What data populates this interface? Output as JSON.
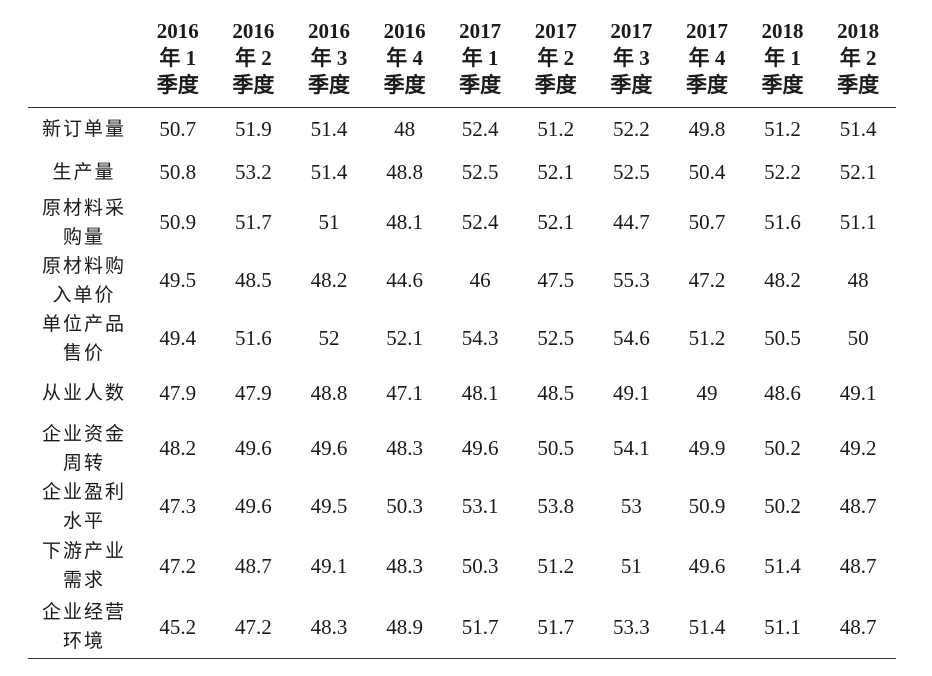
{
  "table": {
    "headers": [
      [
        "2016",
        "年 1",
        "季度"
      ],
      [
        "2016",
        "年 2",
        "季度"
      ],
      [
        "2016",
        "年 3",
        "季度"
      ],
      [
        "2016",
        "年 4",
        "季度"
      ],
      [
        "2017",
        "年 1",
        "季度"
      ],
      [
        "2017",
        "年 2",
        "季度"
      ],
      [
        "2017",
        "年 3",
        "季度"
      ],
      [
        "2017",
        "年 4",
        "季度"
      ],
      [
        "2018",
        "年 1",
        "季度"
      ],
      [
        "2018",
        "年 2",
        "季度"
      ]
    ],
    "rows": [
      {
        "label": [
          "新订单量"
        ],
        "values": [
          "50.7",
          "51.9",
          "51.4",
          "48",
          "52.4",
          "51.2",
          "52.2",
          "49.8",
          "51.2",
          "51.4"
        ]
      },
      {
        "label": [
          "生产量"
        ],
        "values": [
          "50.8",
          "53.2",
          "51.4",
          "48.8",
          "52.5",
          "52.1",
          "52.5",
          "50.4",
          "52.2",
          "52.1"
        ]
      },
      {
        "label": [
          "原材料采",
          "购量"
        ],
        "values": [
          "50.9",
          "51.7",
          "51",
          "48.1",
          "52.4",
          "52.1",
          "44.7",
          "50.7",
          "51.6",
          "51.1"
        ]
      },
      {
        "label": [
          "原材料购",
          "入单价"
        ],
        "values": [
          "49.5",
          "48.5",
          "48.2",
          "44.6",
          "46",
          "47.5",
          "55.3",
          "47.2",
          "48.2",
          "48"
        ]
      },
      {
        "label": [
          "单位产品",
          "售价"
        ],
        "values": [
          "49.4",
          "51.6",
          "52",
          "52.1",
          "54.3",
          "52.5",
          "54.6",
          "51.2",
          "50.5",
          "50"
        ]
      },
      {
        "label": [
          "从业人数"
        ],
        "values": [
          "47.9",
          "47.9",
          "48.8",
          "47.1",
          "48.1",
          "48.5",
          "49.1",
          "49",
          "48.6",
          "49.1"
        ]
      },
      {
        "label": [
          "企业资金",
          "周转"
        ],
        "values": [
          "48.2",
          "49.6",
          "49.6",
          "48.3",
          "49.6",
          "50.5",
          "54.1",
          "49.9",
          "50.2",
          "49.2"
        ]
      },
      {
        "label": [
          "企业盈利",
          "水平"
        ],
        "values": [
          "47.3",
          "49.6",
          "49.5",
          "50.3",
          "53.1",
          "53.8",
          "53",
          "50.9",
          "50.2",
          "48.7"
        ]
      },
      {
        "label": [
          "下游产业",
          "需求"
        ],
        "values": [
          "47.2",
          "48.7",
          "49.1",
          "48.3",
          "50.3",
          "51.2",
          "51",
          "49.6",
          "51.4",
          "48.7"
        ]
      },
      {
        "label": [
          "企业经营",
          "环境"
        ],
        "values": [
          "45.2",
          "47.2",
          "48.3",
          "48.9",
          "51.7",
          "51.7",
          "53.3",
          "51.4",
          "51.1",
          "48.7"
        ]
      }
    ]
  }
}
